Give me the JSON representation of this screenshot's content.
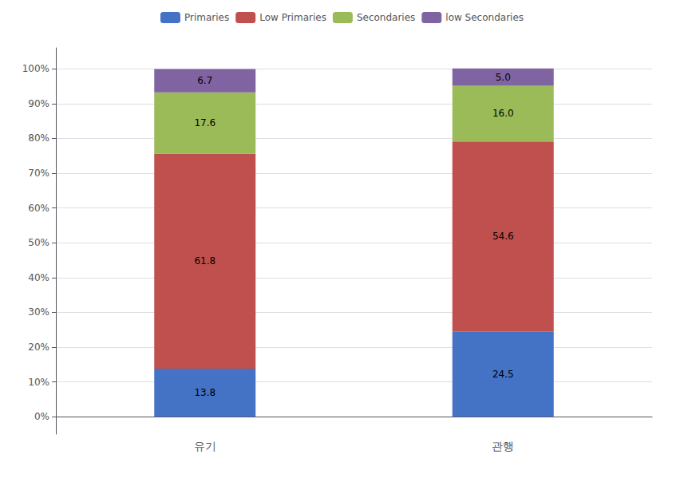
{
  "chart_data": {
    "type": "bar",
    "stacked": true,
    "data_labels": true,
    "grid": true,
    "legend": "top",
    "categories": [
      "유기",
      "관행"
    ],
    "series": [
      {
        "name": "Primaries",
        "color": "#4472C4",
        "values": [
          13.8,
          24.5
        ]
      },
      {
        "name": "Low Primaries",
        "color": "#C0504D",
        "values": [
          61.8,
          54.6
        ]
      },
      {
        "name": "Secondaries",
        "color": "#9BBB59",
        "values": [
          17.6,
          16.0
        ],
        "value_labels": [
          "17.6",
          "16.0"
        ]
      },
      {
        "name": "low Secondaries",
        "color": "#8064A2",
        "values": [
          6.7,
          5.0
        ],
        "value_labels": [
          "6.7",
          "5.0"
        ]
      }
    ],
    "ylim": [
      -5,
      106
    ],
    "yticks": [
      {
        "value": 0,
        "label": "0%"
      },
      {
        "value": 10,
        "label": "10%"
      },
      {
        "value": 20,
        "label": "20%"
      },
      {
        "value": 30,
        "label": "30%"
      },
      {
        "value": 40,
        "label": "40%"
      },
      {
        "value": 50,
        "label": "50%"
      },
      {
        "value": 60,
        "label": "60%"
      },
      {
        "value": 70,
        "label": "70%"
      },
      {
        "value": 80,
        "label": "80%"
      },
      {
        "value": 90,
        "label": "90%"
      },
      {
        "value": 100,
        "label": "100%"
      }
    ]
  }
}
